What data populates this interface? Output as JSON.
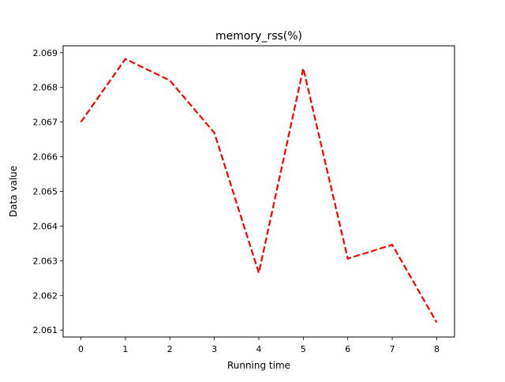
{
  "chart_data": {
    "type": "line",
    "title": "memory_rss(%)",
    "xlabel": "Running time",
    "ylabel": "Data value",
    "x": [
      0,
      1,
      2,
      3,
      4,
      5,
      6,
      7,
      8
    ],
    "xticks": [
      "0",
      "1",
      "2",
      "3",
      "4",
      "5",
      "6",
      "7",
      "8"
    ],
    "yticks": [
      "2.061",
      "2.062",
      "2.063",
      "2.064",
      "2.065",
      "2.066",
      "2.067",
      "2.068",
      "2.069"
    ],
    "xlim": [
      -0.4,
      8.4
    ],
    "ylim": [
      2.0608,
      2.0692
    ],
    "grid": false,
    "legend": "none",
    "series": [
      {
        "color": "#ff0000",
        "line_style": "dashed",
        "values": [
          2.067,
          2.06882,
          2.0682,
          2.06669,
          2.06265,
          2.06855,
          2.06306,
          2.06346,
          2.06122
        ]
      }
    ]
  }
}
